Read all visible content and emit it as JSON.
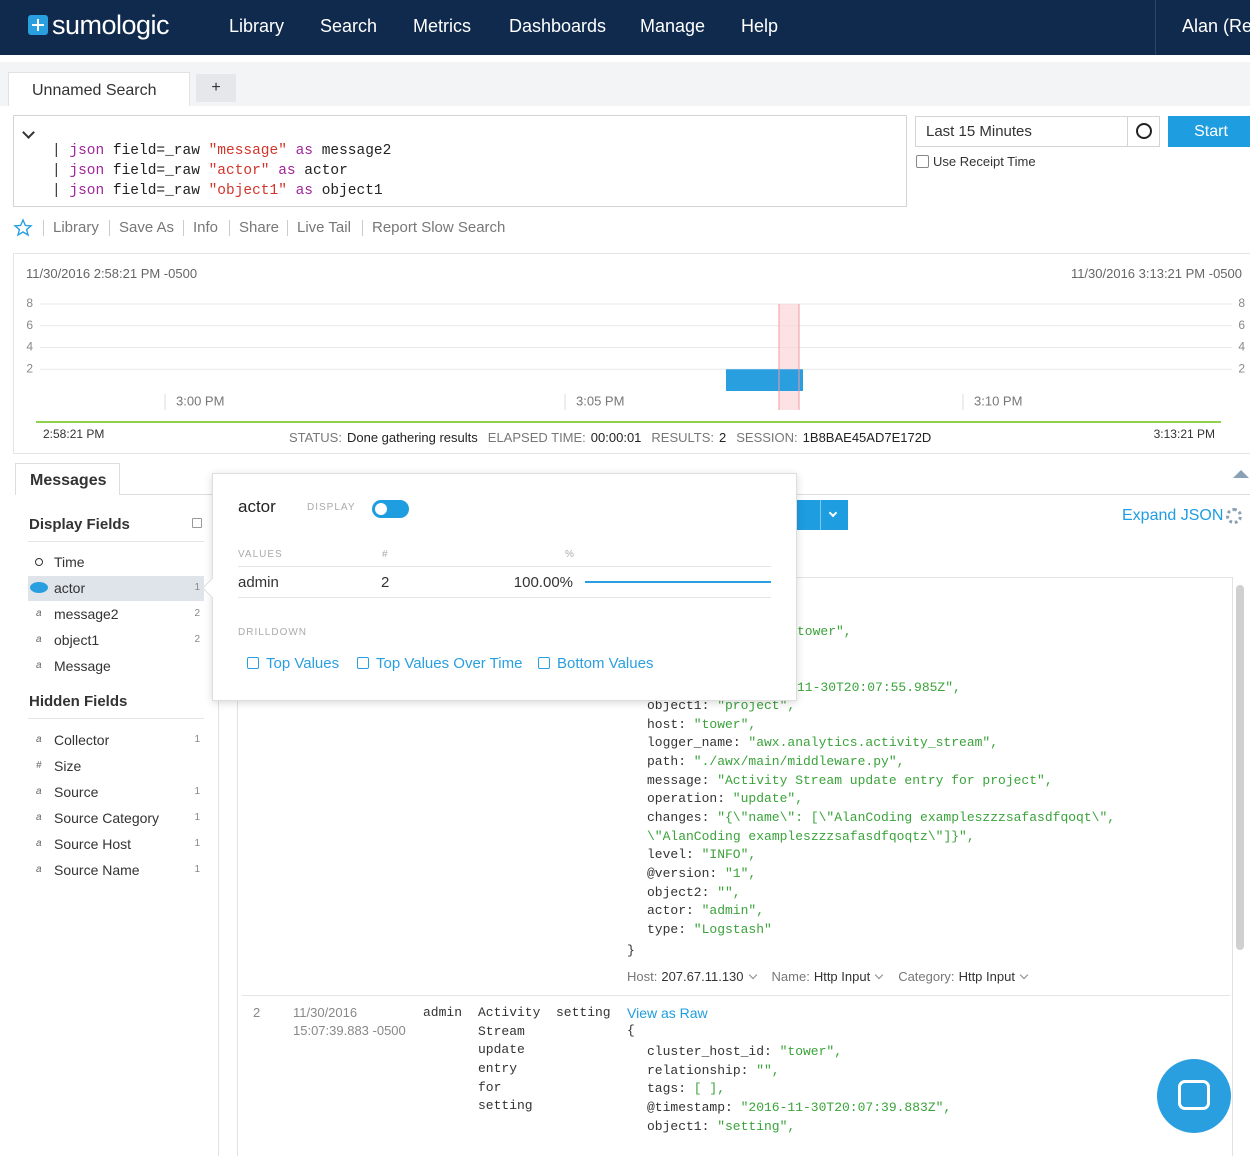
{
  "nav": {
    "logo": "sumologic",
    "items": [
      "Library",
      "Search",
      "Metrics",
      "Dashboards",
      "Manage",
      "Help"
    ],
    "user": "Alan (Re"
  },
  "tabs": {
    "active": "Unnamed Search",
    "add": "+"
  },
  "query": {
    "lines": [
      [
        "| ",
        "json",
        " field=_raw ",
        "\"message\"",
        " as ",
        "message2"
      ],
      [
        "| ",
        "json",
        " field=_raw ",
        "\"actor\"",
        " as ",
        "actor"
      ],
      [
        "| ",
        "json",
        " field=_raw ",
        "\"object1\"",
        " as ",
        "object1"
      ]
    ]
  },
  "time_range": {
    "value": "Last 15 Minutes",
    "start": "Start",
    "receipt": "Use Receipt Time"
  },
  "toolbar": [
    "Library",
    "Save As",
    "Info",
    "Share",
    "Live Tail",
    "Report Slow Search"
  ],
  "timeline": {
    "start": "11/30/2016 2:58:21 PM -0500",
    "end": "11/30/2016 3:13:21 PM -0500",
    "ylim": [
      0,
      8
    ],
    "yticks": [
      2,
      4,
      6,
      8
    ],
    "grid": true,
    "xticks": [
      "3:00 PM",
      "3:05 PM",
      "3:10 PM"
    ],
    "values": [
      2
    ],
    "color": "#2a9fdf",
    "range_start": "2:58:21 PM",
    "range_end": "3:13:21 PM"
  },
  "status": [
    {
      "label": "STATUS:",
      "value": "Done gathering results"
    },
    {
      "label": "ELAPSED TIME:",
      "value": "00:00:01"
    },
    {
      "label": "RESULTS:",
      "value": "2"
    },
    {
      "label": "SESSION:",
      "value": "1B8BAE45AD7E172D"
    }
  ],
  "messages_tab": "Messages",
  "display_fields": {
    "title": "Display Fields",
    "fields": [
      {
        "name": "Time"
      },
      {
        "name": "actor",
        "count": "1"
      },
      {
        "name": "message2",
        "icon": "a",
        "count": "2"
      },
      {
        "name": "object1",
        "icon": "a",
        "count": "2"
      },
      {
        "name": "Message",
        "icon": "a"
      }
    ]
  },
  "hidden_fields": {
    "title": "Hidden Fields",
    "fields": [
      {
        "name": "Collector",
        "icon": "a",
        "count": "1"
      },
      {
        "name": "Size",
        "icon": "#"
      },
      {
        "name": "Source",
        "icon": "a",
        "count": "1"
      },
      {
        "name": "Source Category",
        "icon": "a",
        "count": "1"
      },
      {
        "name": "Source Host",
        "icon": "a",
        "count": "1"
      },
      {
        "name": "Source Name",
        "icon": "a",
        "count": "1"
      }
    ]
  },
  "popup": {
    "field": "actor",
    "display": "DISPLAY",
    "values_header": "VALUES",
    "count_header": "#",
    "pct_header": "%",
    "rows": [
      {
        "value": "admin",
        "count": "2",
        "pct": 100,
        "pct_label": "100.00%"
      }
    ],
    "drilldown": "DRILLDOWN",
    "links": [
      "Top Values",
      "Top Values Over Time",
      "Bottom Values"
    ]
  },
  "expand_json": "Expand JSON",
  "message1": {
    "partial": [
      "tower\",",
      "11-30T20:07:55.985Z\","
    ],
    "json": [
      {
        "key": "object1:",
        "value": "\"project\","
      },
      {
        "key": "host:",
        "value": "\"tower\","
      },
      {
        "key": "logger_name:",
        "value": "\"awx.analytics.activity_stream\","
      },
      {
        "key": "path:",
        "value": "\"./awx/main/middleware.py\","
      },
      {
        "key": "message:",
        "value": "\"Activity Stream update entry for project\","
      },
      {
        "key": "operation:",
        "value": "\"update\","
      },
      {
        "key": "changes:",
        "value": "\"{\\\"name\\\": [\\\"AlanCoding exampleszzzsafasdfqoqt\\\","
      },
      {
        "value": "\\\"AlanCoding exampleszzzsafasdfqoqtz\\\"]}\","
      },
      {
        "key": "level:",
        "value": "\"INFO\","
      },
      {
        "key": "@version:",
        "value": "\"1\","
      },
      {
        "key": "object2:",
        "value": "\"\","
      },
      {
        "key": "actor:",
        "value": "\"admin\","
      },
      {
        "key": "type:",
        "value": "\"Logstash\""
      }
    ],
    "close": "}",
    "meta": [
      {
        "label": "Host:",
        "value": "207.67.11.130"
      },
      {
        "label": "Name:",
        "value": "Http Input"
      },
      {
        "label": "Category:",
        "value": "Http Input"
      }
    ]
  },
  "message2": {
    "index": "2",
    "date": "11/30/2016",
    "time": "15:07:39.883 -0500",
    "actor": "admin",
    "message": "Activity Stream update entry for setting",
    "operation": "setting",
    "view_raw": "View as Raw",
    "open": "{",
    "json": [
      {
        "key": "cluster_host_id:",
        "value": "\"tower\","
      },
      {
        "key": "relationship:",
        "value": "\"\","
      },
      {
        "key": "tags:",
        "value": "[ ],"
      },
      {
        "key": "@timestamp:",
        "value": "\"2016-11-30T20:07:39.883Z\","
      },
      {
        "key": "object1:",
        "value": "\"setting\","
      }
    ]
  }
}
